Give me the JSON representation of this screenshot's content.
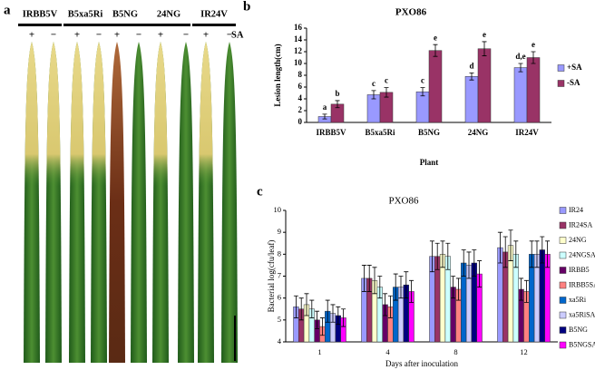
{
  "panel_a": {
    "label": "a",
    "groups": [
      {
        "name": "IRBB5V",
        "signs": [
          "+",
          "−"
        ]
      },
      {
        "name": "B5xa5Ri",
        "signs": [
          "+",
          "−"
        ]
      },
      {
        "name": "B5NG",
        "signs": [
          "+",
          "−"
        ]
      },
      {
        "name": "24NG",
        "signs": [
          "+",
          "−"
        ]
      },
      {
        "name": "IR24V",
        "signs": [
          "+",
          "−"
        ]
      }
    ],
    "treatment": "SA"
  },
  "chart_data": [
    {
      "type": "bar",
      "panel": "b",
      "title": "PXO86",
      "x_label": "Plant",
      "y_label": "Lesion length(cm)",
      "categories": [
        "IRBB5V",
        "B5xa5Ri",
        "B5NG",
        "24NG",
        "IR24V"
      ],
      "series": [
        {
          "name": "+SA",
          "color": "#9999ff",
          "values": [
            1.0,
            4.7,
            5.2,
            7.8,
            9.3
          ],
          "errors": [
            0.4,
            0.7,
            0.7,
            0.6,
            0.7
          ],
          "letters": [
            "a",
            "c",
            "c",
            "d",
            "d,e"
          ]
        },
        {
          "name": "-SA",
          "color": "#993366",
          "values": [
            3.1,
            5.1,
            12.2,
            12.5,
            11.0
          ],
          "errors": [
            0.6,
            0.8,
            1.0,
            1.2,
            1.0
          ],
          "letters": [
            "b",
            "c",
            "e",
            "e",
            "e"
          ]
        }
      ],
      "ylim": [
        0,
        16
      ],
      "yticks": [
        0,
        2,
        4,
        6,
        8,
        10,
        12,
        14,
        16
      ],
      "legend": "right"
    },
    {
      "type": "bar",
      "panel": "c",
      "title": "PXO86",
      "x_label": "Days after inoculation",
      "y_label": "Bacterial log(cfu/leaf)",
      "categories": [
        "1",
        "4",
        "8",
        "12"
      ],
      "series": [
        {
          "name": "IR24",
          "color": "#9999ff",
          "values": [
            5.6,
            6.9,
            7.9,
            8.3
          ],
          "errors": [
            0.5,
            0.6,
            0.7,
            0.7
          ]
        },
        {
          "name": "IR24SA",
          "color": "#993366",
          "values": [
            5.5,
            6.9,
            7.9,
            8.1
          ],
          "errors": [
            0.5,
            0.6,
            0.6,
            0.7
          ]
        },
        {
          "name": "24NG",
          "color": "#ffffcc",
          "values": [
            5.7,
            6.8,
            8.0,
            8.4
          ],
          "errors": [
            0.5,
            0.6,
            0.6,
            0.7
          ]
        },
        {
          "name": "24NGSA",
          "color": "#ccffff",
          "values": [
            5.5,
            6.5,
            7.9,
            8.0
          ],
          "errors": [
            0.4,
            0.5,
            0.6,
            0.6
          ]
        },
        {
          "name": "IRBB5",
          "color": "#660066",
          "values": [
            5.0,
            5.7,
            6.5,
            6.4
          ],
          "errors": [
            0.4,
            0.5,
            0.5,
            0.5
          ]
        },
        {
          "name": "IRBB5SA",
          "color": "#ff8080",
          "values": [
            4.7,
            5.6,
            6.4,
            6.3
          ],
          "errors": [
            0.4,
            0.5,
            0.5,
            0.5
          ]
        },
        {
          "name": "xa5Ri",
          "color": "#0066cc",
          "values": [
            5.4,
            6.5,
            7.6,
            8.0
          ],
          "errors": [
            0.5,
            0.6,
            0.6,
            0.6
          ]
        },
        {
          "name": "xa5RiSA",
          "color": "#ccccff",
          "values": [
            5.3,
            6.5,
            7.5,
            8.0
          ],
          "errors": [
            0.4,
            0.5,
            0.6,
            0.6
          ]
        },
        {
          "name": "B5NG",
          "color": "#000080",
          "values": [
            5.2,
            6.6,
            7.6,
            8.2
          ],
          "errors": [
            0.4,
            0.6,
            0.6,
            0.6
          ]
        },
        {
          "name": "B5NGSA",
          "color": "#ff00ff",
          "values": [
            5.1,
            6.3,
            7.1,
            8.0
          ],
          "errors": [
            0.4,
            0.5,
            0.6,
            0.6
          ]
        }
      ],
      "ylim": [
        4,
        10
      ],
      "yticks": [
        4,
        5,
        6,
        7,
        8,
        9,
        10
      ],
      "legend": "right"
    }
  ]
}
